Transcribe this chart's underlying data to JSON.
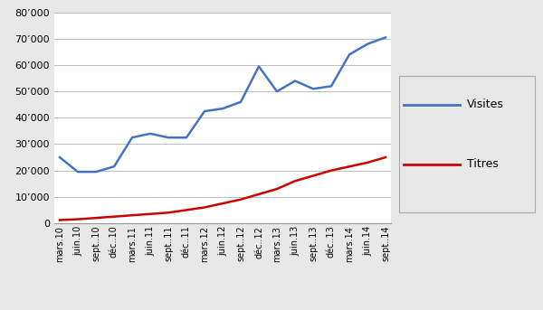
{
  "labels": [
    "mars.10",
    "juin.10",
    "sept..10",
    "déc..10",
    "mars.11",
    "juin.11",
    "sept..11",
    "déc..11",
    "mars.12",
    "juin.12",
    "sept..12",
    "déc..12",
    "mars.13",
    "juin.13",
    "sept..13",
    "déc..13",
    "mars.14",
    "juin.14",
    "sept..14"
  ],
  "visites": [
    25000,
    19500,
    19500,
    21500,
    32500,
    34000,
    32500,
    32500,
    42500,
    43500,
    46000,
    59500,
    50000,
    54000,
    51000,
    52000,
    64000,
    68000,
    70500
  ],
  "titres": [
    1200,
    1500,
    2000,
    2500,
    3000,
    3500,
    4000,
    5000,
    6000,
    7500,
    9000,
    11000,
    13000,
    16000,
    18000,
    20000,
    21500,
    23000,
    25000
  ],
  "visites_color": "#4472C4",
  "titres_color": "#CC0000",
  "background_color": "#E8E8E8",
  "plot_background": "#FFFFFF",
  "ylim": [
    0,
    80000
  ],
  "yticks": [
    0,
    10000,
    20000,
    30000,
    40000,
    50000,
    60000,
    70000,
    80000
  ],
  "grid_color": "#BBBBBB",
  "legend_visites": "Visites",
  "legend_titres": "Titres",
  "line_width": 1.8
}
